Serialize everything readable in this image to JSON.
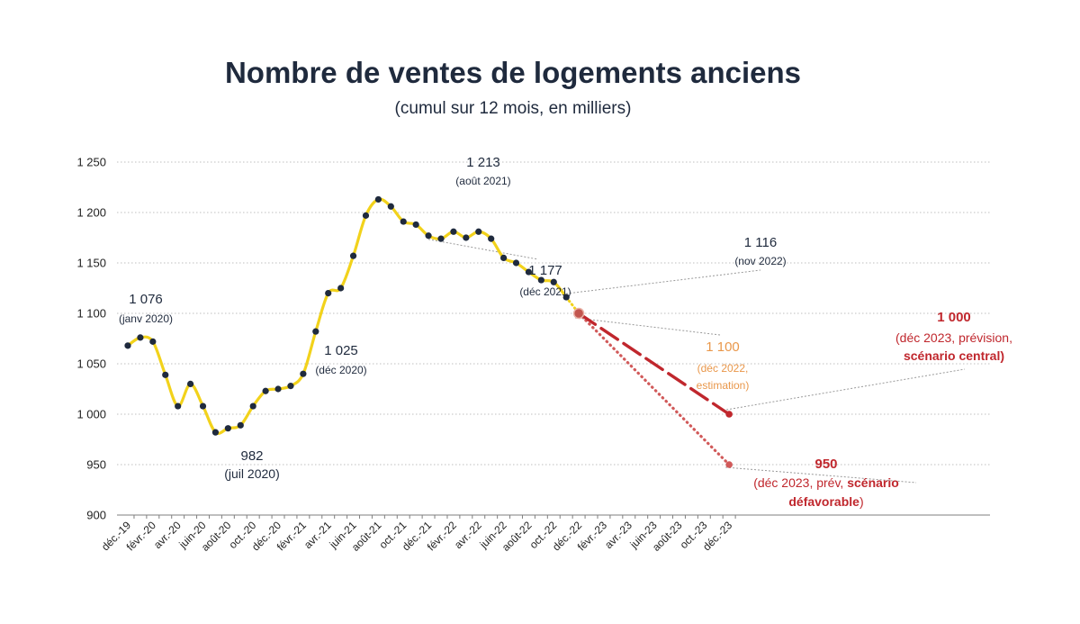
{
  "chart_data": {
    "type": "line",
    "title": "Nombre de ventes de logements anciens",
    "subtitle": "(cumul sur 12 mois, en milliers)",
    "ylim": [
      900,
      1250
    ],
    "yticks": [
      "1 250",
      "1 200",
      "1 150",
      "1 100",
      "1 050",
      "1 000",
      "950",
      "900"
    ],
    "ytick_values": [
      1250,
      1200,
      1150,
      1100,
      1050,
      1000,
      950,
      900
    ],
    "grid": "horizontal dotted",
    "x_tick_labels": [
      "déc.-19",
      "févr.-20",
      "avr.-20",
      "juin-20",
      "août-20",
      "oct.-20",
      "déc.-20",
      "févr.-21",
      "avr.-21",
      "juin-21",
      "août-21",
      "oct.-21",
      "déc.-21",
      "févr.-22",
      "avr.-22",
      "juin-22",
      "août-22",
      "oct.-22",
      "déc.-22",
      "févr.-23",
      "avr.-23",
      "juin-23",
      "août-23",
      "oct.-23",
      "déc.-23"
    ],
    "months": [
      "déc.-19",
      "janv.-20",
      "févr.-20",
      "mars-20",
      "avr.-20",
      "mai-20",
      "juin-20",
      "juil.-20",
      "août-20",
      "sept.-20",
      "oct.-20",
      "nov.-20",
      "déc.-20",
      "janv.-21",
      "févr.-21",
      "mars-21",
      "avr.-21",
      "mai-21",
      "juin-21",
      "juil.-21",
      "août-21",
      "sept.-21",
      "oct.-21",
      "nov.-21",
      "déc.-21",
      "janv.-22",
      "févr.-22",
      "mars-22",
      "avr.-22",
      "mai-22",
      "juin-22",
      "juil.-22",
      "août-22",
      "sept.-22",
      "oct.-22",
      "nov.-22",
      "déc.-22",
      "janv.-23",
      "févr.-23",
      "mars-23",
      "avr.-23",
      "mai-23",
      "juin-23",
      "juil.-23",
      "août-23",
      "sept.-23",
      "oct.-23",
      "nov.-23",
      "déc.-23"
    ],
    "series": [
      {
        "color": "#f2d21b",
        "style": "solid",
        "values": [
          1068,
          1076,
          1072,
          1039,
          1008,
          1030,
          1008,
          982,
          986,
          989,
          1008,
          1023,
          1025,
          1028,
          1040,
          1082,
          1120,
          1125,
          1157,
          1197,
          1213,
          1206,
          1191,
          1188,
          1177,
          1174,
          1181,
          1175,
          1181,
          1174,
          1155,
          1150,
          1141,
          1133,
          1131,
          1116
        ]
      },
      {
        "color": "#f2d21b",
        "style": "dotted",
        "x_range": [
          "nov.-22",
          "déc.-22"
        ],
        "values": [
          1116,
          1100
        ]
      },
      {
        "color": "#c0272d",
        "style": "dashed",
        "x_range": [
          "déc.-22",
          "déc.-23"
        ],
        "values": [
          1100,
          1000
        ]
      },
      {
        "color": "#d15a5a",
        "style": "dotted",
        "x_range": [
          "déc.-22",
          "déc.-23"
        ],
        "values": [
          1100,
          950
        ]
      }
    ],
    "annotations": [
      {
        "value": "1 076",
        "sub": "(janv 2020)"
      },
      {
        "value": "982",
        "sub": "(juil 2020)"
      },
      {
        "value": "1 025",
        "sub": "(déc 2020)"
      },
      {
        "value": "1 213",
        "sub": "(août 2021)"
      },
      {
        "value": "1 177",
        "sub": "(déc 2021)"
      },
      {
        "value": "1 116",
        "sub": "(nov 2022)"
      },
      {
        "value": "1 100",
        "lines": [
          "(déc 2022,",
          "estimation)"
        ]
      },
      {
        "value": "1 000",
        "line1": "(déc 2023, prévision,",
        "line2": "scénario central)"
      },
      {
        "value": "950",
        "line1a": "(déc 2023, prév, ",
        "line1b": "scénario",
        "line2a": "défavorable",
        "line2b": ")"
      }
    ],
    "colors": {
      "line": "#f2d21b",
      "marker": "#1f2a3d",
      "estimate": "#e9974a",
      "forecast": "#c0272d",
      "forecast_light": "#d15a5a",
      "text": "#1f2a3d",
      "grid": "#bfbfbf"
    }
  }
}
